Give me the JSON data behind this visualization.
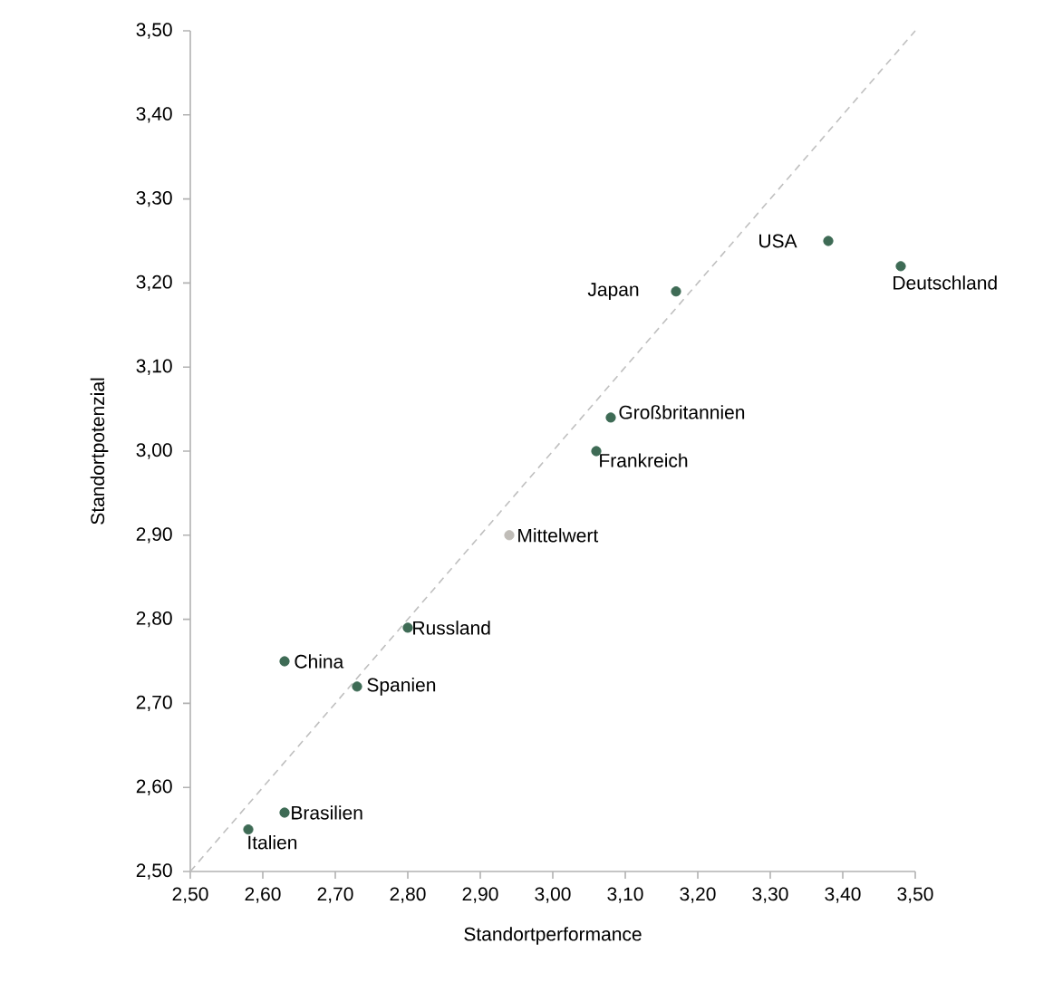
{
  "chart_data": {
    "type": "scatter",
    "xlabel": "Standortperformance",
    "ylabel": "Standortpotenzial",
    "xlim": [
      2.5,
      3.5
    ],
    "ylim": [
      2.5,
      3.5
    ],
    "xticks": [
      {
        "value": 2.5,
        "label": "2,50"
      },
      {
        "value": 2.6,
        "label": "2,60"
      },
      {
        "value": 2.7,
        "label": "2,70"
      },
      {
        "value": 2.8,
        "label": "2,80"
      },
      {
        "value": 2.9,
        "label": "2,90"
      },
      {
        "value": 3.0,
        "label": "3,00"
      },
      {
        "value": 3.1,
        "label": "3,10"
      },
      {
        "value": 3.2,
        "label": "3,20"
      },
      {
        "value": 3.3,
        "label": "3,30"
      },
      {
        "value": 3.4,
        "label": "3,40"
      },
      {
        "value": 3.5,
        "label": "3,50"
      }
    ],
    "yticks": [
      {
        "value": 2.5,
        "label": "2,50"
      },
      {
        "value": 2.6,
        "label": "2,60"
      },
      {
        "value": 2.7,
        "label": "2,70"
      },
      {
        "value": 2.8,
        "label": "2,80"
      },
      {
        "value": 2.9,
        "label": "2,90"
      },
      {
        "value": 3.0,
        "label": "3,00"
      },
      {
        "value": 3.1,
        "label": "3,10"
      },
      {
        "value": 3.2,
        "label": "3,20"
      },
      {
        "value": 3.3,
        "label": "3,30"
      },
      {
        "value": 3.4,
        "label": "3,40"
      },
      {
        "value": 3.5,
        "label": "3,50"
      }
    ],
    "grid": false,
    "legend": false,
    "marker": "circle",
    "series": [
      {
        "type": "line",
        "line_style": "dashed",
        "marker": "none",
        "color": "#bfbfbf",
        "x": [
          2.5,
          3.5
        ],
        "values": [
          2.5,
          3.5
        ]
      },
      {
        "name": "USA",
        "color": "#3e6b55",
        "x": [
          3.38
        ],
        "values": [
          3.25
        ]
      },
      {
        "name": "Deutschland",
        "color": "#3e6b55",
        "x": [
          3.48
        ],
        "values": [
          3.22
        ]
      },
      {
        "name": "Japan",
        "color": "#3e6b55",
        "x": [
          3.17
        ],
        "values": [
          3.19
        ]
      },
      {
        "name": "Großbritannien",
        "color": "#3e6b55",
        "x": [
          3.08
        ],
        "values": [
          3.04
        ]
      },
      {
        "name": "Frankreich",
        "color": "#3e6b55",
        "x": [
          3.06
        ],
        "values": [
          3.0
        ]
      },
      {
        "name": "Mittelwert",
        "color": "#c0bdb8",
        "x": [
          2.94
        ],
        "values": [
          2.9
        ]
      },
      {
        "name": "Russland",
        "color": "#3e6b55",
        "x": [
          2.8
        ],
        "values": [
          2.79
        ]
      },
      {
        "name": "China",
        "color": "#3e6b55",
        "x": [
          2.63
        ],
        "values": [
          2.75
        ]
      },
      {
        "name": "Spanien",
        "color": "#3e6b55",
        "x": [
          2.73
        ],
        "values": [
          2.72
        ]
      },
      {
        "name": "Brasilien",
        "color": "#3e6b55",
        "x": [
          2.63
        ],
        "values": [
          2.57
        ]
      },
      {
        "name": "Italien",
        "color": "#3e6b55",
        "x": [
          2.58
        ],
        "values": [
          2.55
        ]
      }
    ]
  }
}
